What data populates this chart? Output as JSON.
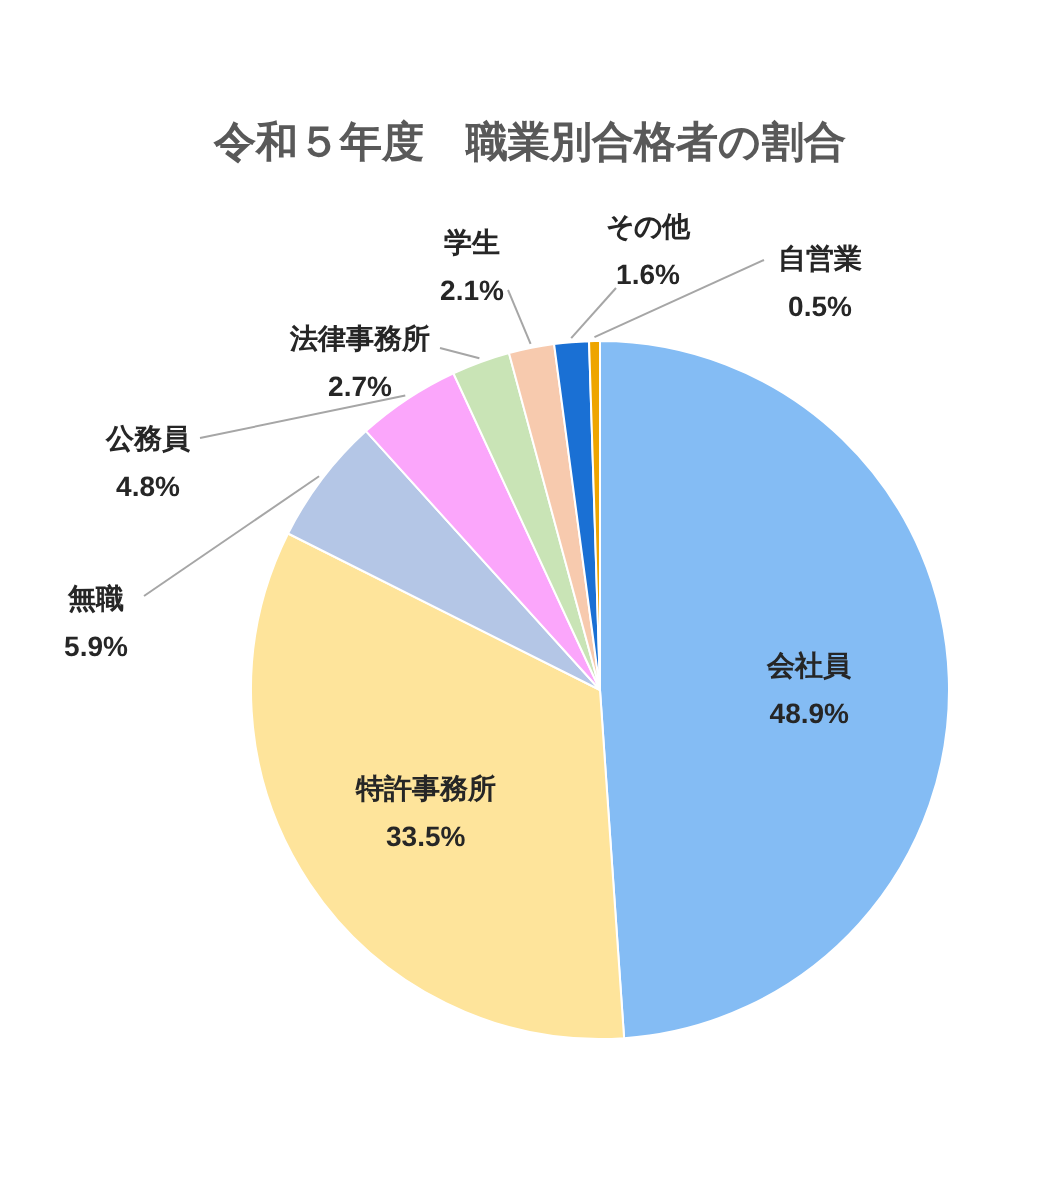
{
  "chart_data": {
    "type": "pie",
    "title": "令和５年度　職業別合格者の割合",
    "categories": [
      "会社員",
      "特許事務所",
      "無職",
      "公務員",
      "法律事務所",
      "学生",
      "その他",
      "自営業"
    ],
    "values": [
      48.9,
      33.5,
      5.9,
      4.8,
      2.7,
      2.1,
      1.6,
      0.5
    ],
    "colors": [
      "#84bcf4",
      "#fee49b",
      "#b4c6e6",
      "#fba6fb",
      "#c9e4b6",
      "#f7caae",
      "#1a70d4",
      "#eea500"
    ],
    "value_labels": [
      "48.9%",
      "33.5%",
      "5.9%",
      "4.8%",
      "2.7%",
      "2.1%",
      "1.6%",
      "0.5%"
    ],
    "legend": false
  }
}
